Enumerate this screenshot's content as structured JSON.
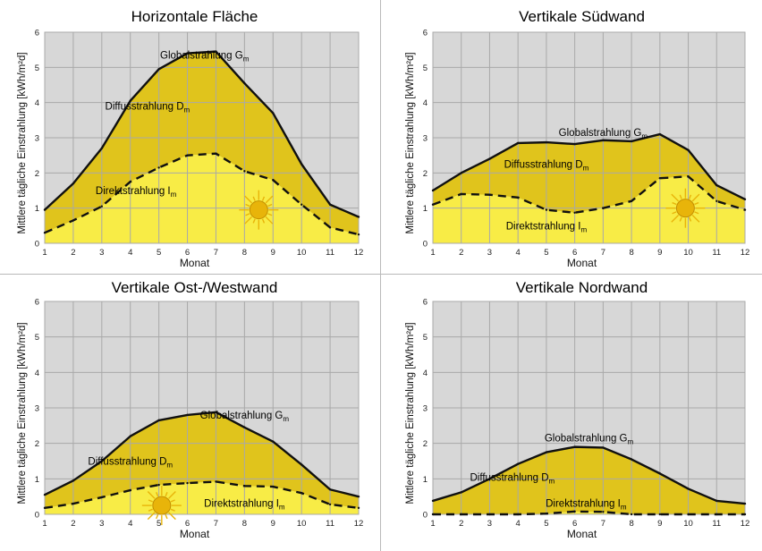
{
  "chart_data": [
    {
      "type": "area",
      "title": "Horizontale Fläche",
      "xlabel": "Monat",
      "ylabel": "Mittlere tägliche Einstrahlung [kWh/m²d]",
      "xlim": [
        1,
        12
      ],
      "ylim": [
        0,
        6
      ],
      "x": [
        1,
        2,
        3,
        4,
        5,
        6,
        7,
        8,
        9,
        10,
        11,
        12
      ],
      "yticks": [
        "0",
        "1",
        "2",
        "3",
        "4",
        "5",
        "6"
      ],
      "xticks": [
        "1",
        "2",
        "3",
        "4",
        "5",
        "6",
        "7",
        "8",
        "9",
        "10",
        "11",
        "12"
      ],
      "grid": true,
      "series": [
        {
          "key": "global",
          "values": [
            0.95,
            1.7,
            2.7,
            4.05,
            4.95,
            5.4,
            5.45,
            4.55,
            3.7,
            2.25,
            1.1,
            0.75
          ]
        },
        {
          "key": "direct",
          "values": [
            0.3,
            0.65,
            1.05,
            1.75,
            2.15,
            2.5,
            2.55,
            2.05,
            1.8,
            1.1,
            0.45,
            0.25
          ]
        }
      ],
      "labels": {
        "global": {
          "text": "Globalstrahlung G",
          "sub": "m"
        },
        "diffuse": {
          "text": "Diffusstrahlung D",
          "sub": "m"
        },
        "direct": {
          "text": "Direktstrahlung I",
          "sub": "m"
        }
      }
    },
    {
      "type": "area",
      "title": "Vertikale Südwand",
      "xlabel": "Monat",
      "ylabel": "Mittlere tägliche Einstrahlung [kWh/m²d]",
      "xlim": [
        1,
        12
      ],
      "ylim": [
        0,
        6
      ],
      "x": [
        1,
        2,
        3,
        4,
        5,
        6,
        7,
        8,
        9,
        10,
        11,
        12
      ],
      "yticks": [
        "0",
        "1",
        "2",
        "3",
        "4",
        "5",
        "6"
      ],
      "xticks": [
        "1",
        "2",
        "3",
        "4",
        "5",
        "6",
        "7",
        "8",
        "9",
        "10",
        "11",
        "12"
      ],
      "grid": true,
      "series": [
        {
          "key": "global",
          "values": [
            1.5,
            2.0,
            2.4,
            2.85,
            2.87,
            2.82,
            2.93,
            2.9,
            3.1,
            2.65,
            1.65,
            1.25
          ]
        },
        {
          "key": "direct",
          "values": [
            1.1,
            1.4,
            1.38,
            1.3,
            0.95,
            0.87,
            1.0,
            1.2,
            1.85,
            1.9,
            1.2,
            0.95
          ]
        }
      ],
      "labels": {
        "global": {
          "text": "Globalstrahlung G",
          "sub": "m"
        },
        "diffuse": {
          "text": "Diffusstrahlung D",
          "sub": "m"
        },
        "direct": {
          "text": "Direktstrahlung I",
          "sub": "m"
        }
      }
    },
    {
      "type": "area",
      "title": "Vertikale Ost-/Westwand",
      "xlabel": "Monat",
      "ylabel": "Mittlere tägliche Einstrahlung [kWh/m²d]",
      "xlim": [
        1,
        12
      ],
      "ylim": [
        0,
        6
      ],
      "x": [
        1,
        2,
        3,
        4,
        5,
        6,
        7,
        8,
        9,
        10,
        11,
        12
      ],
      "yticks": [
        "0",
        "1",
        "2",
        "3",
        "4",
        "5",
        "6"
      ],
      "xticks": [
        "1",
        "2",
        "3",
        "4",
        "5",
        "6",
        "7",
        "8",
        "9",
        "10",
        "11",
        "12"
      ],
      "grid": true,
      "series": [
        {
          "key": "global",
          "values": [
            0.55,
            0.95,
            1.5,
            2.2,
            2.65,
            2.8,
            2.88,
            2.45,
            2.05,
            1.4,
            0.7,
            0.5
          ]
        },
        {
          "key": "direct",
          "values": [
            0.18,
            0.3,
            0.48,
            0.68,
            0.83,
            0.88,
            0.92,
            0.8,
            0.78,
            0.6,
            0.28,
            0.18
          ]
        }
      ],
      "labels": {
        "global": {
          "text": "Globalstrahlung G",
          "sub": "m"
        },
        "diffuse": {
          "text": "Diffusstrahlung D",
          "sub": "m"
        },
        "direct": {
          "text": "Direktstrahlung I",
          "sub": "m"
        }
      }
    },
    {
      "type": "area",
      "title": "Vertikale Nordwand",
      "xlabel": "Monat",
      "ylabel": "Mittlere tägliche Einstrahlung [kWh/m²d]",
      "xlim": [
        1,
        12
      ],
      "ylim": [
        0,
        6
      ],
      "x": [
        1,
        2,
        3,
        4,
        5,
        6,
        7,
        8,
        9,
        10,
        11,
        12
      ],
      "yticks": [
        "0",
        "1",
        "2",
        "3",
        "4",
        "5",
        "6"
      ],
      "xticks": [
        "1",
        "2",
        "3",
        "4",
        "5",
        "6",
        "7",
        "8",
        "9",
        "10",
        "11",
        "12"
      ],
      "grid": true,
      "series": [
        {
          "key": "global",
          "values": [
            0.38,
            0.62,
            1.0,
            1.42,
            1.75,
            1.9,
            1.88,
            1.55,
            1.15,
            0.72,
            0.38,
            0.3
          ]
        },
        {
          "key": "direct",
          "values": [
            0.0,
            0.0,
            0.0,
            0.0,
            0.02,
            0.08,
            0.07,
            0.0,
            0.0,
            0.0,
            0.0,
            0.0
          ]
        }
      ],
      "labels": {
        "global": {
          "text": "Globalstrahlung G",
          "sub": "m"
        },
        "diffuse": {
          "text": "Diffusstrahlung D",
          "sub": "m"
        },
        "direct": {
          "text": "Direktstrahlung I",
          "sub": "m"
        }
      }
    }
  ],
  "colors": {
    "background": "#d7d7d7",
    "grid": "#a9a9a9",
    "diffuse_fill": "#e0c41c",
    "direct_fill": "#f8ec46",
    "line": "#101010",
    "sun": "#e8b40a"
  },
  "icons": {
    "sun": "sun-icon"
  }
}
